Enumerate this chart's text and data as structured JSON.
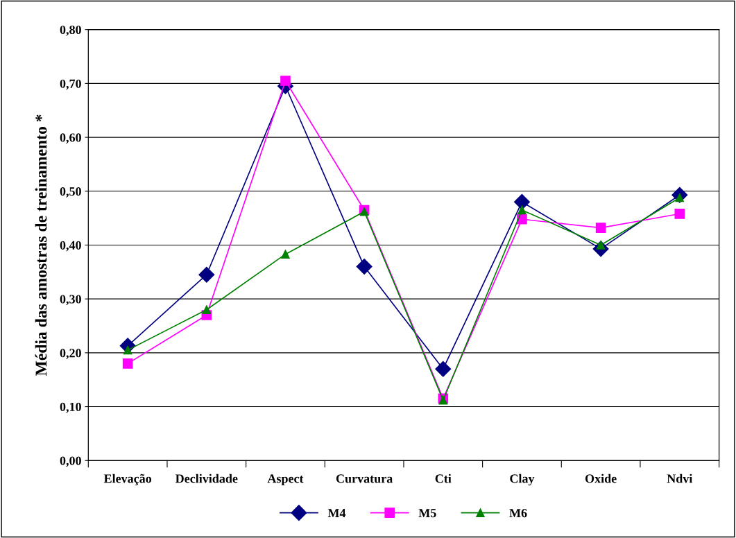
{
  "chart_data": {
    "type": "line",
    "ylabel": "Média das amostras de treinamento *",
    "categories": [
      "Elevação",
      "Declividade",
      "Aspect",
      "Curvatura",
      "Cti",
      "Clay",
      "Oxide",
      "Ndvi"
    ],
    "series": [
      {
        "name": "M4",
        "color": "#000080",
        "marker": "diamond",
        "values": [
          0.213,
          0.345,
          0.695,
          0.36,
          0.17,
          0.48,
          0.393,
          0.493
        ]
      },
      {
        "name": "M5",
        "color": "#ff00ff",
        "marker": "square",
        "values": [
          0.18,
          0.27,
          0.705,
          0.465,
          0.115,
          0.448,
          0.432,
          0.458
        ]
      },
      {
        "name": "M6",
        "color": "#008000",
        "marker": "triangle",
        "values": [
          0.205,
          0.28,
          0.383,
          0.462,
          0.112,
          0.465,
          0.4,
          0.488
        ]
      }
    ],
    "ylim": [
      0,
      0.8
    ],
    "yticks": [
      {
        "value": 0,
        "label": "0,00"
      },
      {
        "value": 0.1,
        "label": "0,10"
      },
      {
        "value": 0.2,
        "label": "0,20"
      },
      {
        "value": 0.3,
        "label": "0,30"
      },
      {
        "value": 0.4,
        "label": "0,40"
      },
      {
        "value": 0.5,
        "label": "0,50"
      },
      {
        "value": 0.6,
        "label": "0,60"
      },
      {
        "value": 0.7,
        "label": "0,70"
      },
      {
        "value": 0.8,
        "label": "0,80"
      }
    ],
    "grid": "y",
    "legend": "bottom",
    "line_style": "solid"
  }
}
